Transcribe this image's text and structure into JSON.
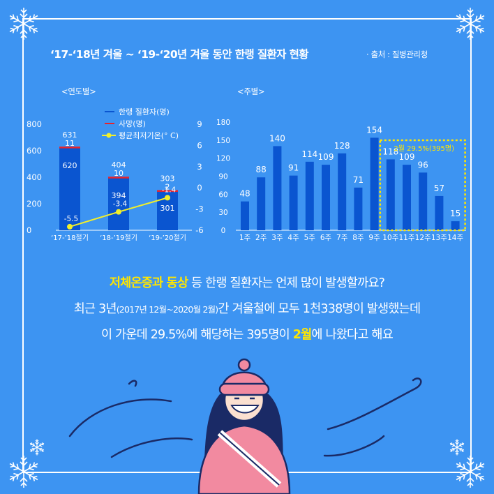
{
  "title": "‘17-‘18년 겨울 ~ ‘19-‘20년 겨울 동안 한랭 질환자 현황",
  "source": "· 출처 : 질병관리청",
  "colors": {
    "background": "#3d94f2",
    "bar": "#0a55d0",
    "death": "#e8242c",
    "temp_line": "#f2ef2a",
    "highlight": "#ffe600"
  },
  "chart_data": [
    {
      "type": "bar",
      "subtitle": "<연도별>",
      "categories": [
        "‘17-’18절기",
        "‘18-’19절기",
        "‘19-’20절기"
      ],
      "series": [
        {
          "name": "한랭 질환자(명)",
          "values": [
            620,
            394,
            301
          ]
        },
        {
          "name": "사망(명)",
          "values": [
            11,
            10,
            2
          ]
        },
        {
          "name": "평균최저기온(° C)",
          "values": [
            -5.5,
            -3.4,
            -1.4
          ],
          "type": "line"
        }
      ],
      "totals": [
        631,
        404,
        303
      ],
      "y_left": {
        "ylim": [
          0,
          800
        ],
        "ticks": [
          "0",
          "200",
          "400",
          "600",
          "800"
        ]
      },
      "y_right": {
        "ylim": [
          -6,
          9
        ],
        "ticks": [
          "9",
          "6",
          "3",
          "0",
          "-3",
          "-6"
        ]
      }
    },
    {
      "type": "bar",
      "subtitle": "<주별>",
      "categories": [
        "1주",
        "2주",
        "3주",
        "4주",
        "5주",
        "6주",
        "7주",
        "8주",
        "9주",
        "10주",
        "11주",
        "12주",
        "13주",
        "14주"
      ],
      "values": [
        48,
        88,
        140,
        91,
        114,
        109,
        128,
        71,
        154,
        118,
        109,
        96,
        57,
        15
      ],
      "ylim": [
        0,
        180
      ],
      "y_ticks": [
        "0",
        "30",
        "60",
        "90",
        "120",
        "150",
        "180"
      ],
      "annotation": {
        "label": "2월 29.5%(395명)",
        "range": [
          "10주",
          "14주"
        ]
      }
    }
  ],
  "caption": {
    "line1": {
      "highlight": "저체온증과 동상",
      "rest": " 등 한랭 질환자는 언제 많이 발생할까요?"
    },
    "line2": {
      "a": "최근 3년",
      "b": "(2017년 12월~2020월 2월)",
      "c": "간 겨울철에 모두 1천338명이 발생했는데"
    },
    "line3": {
      "a": "이 가운데 29.5%에 해당하는 395명이 ",
      "highlight": "2월",
      "c": "에 나왔다고 해요"
    }
  }
}
